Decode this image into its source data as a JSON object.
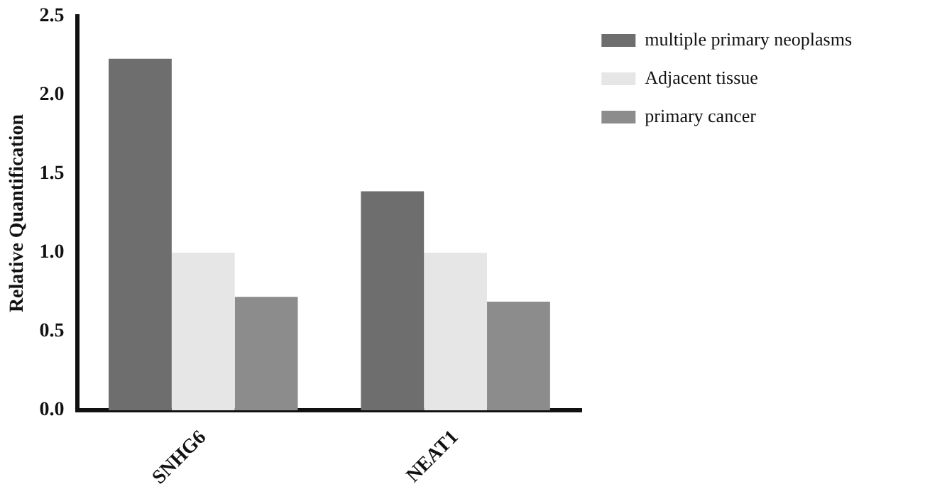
{
  "chart_data": {
    "type": "bar",
    "ylabel": "Relative Quantification",
    "categories": [
      "SNHG6",
      "NEAT1"
    ],
    "series": [
      {
        "name": "multiple primary neoplasms",
        "color": "#6e6e6e",
        "values": [
          2.23,
          1.39
        ]
      },
      {
        "name": "Adjacent tissue",
        "color": "#e6e6e6",
        "values": [
          1.0,
          1.0
        ]
      },
      {
        "name": "primary cancer",
        "color": "#8c8c8c",
        "values": [
          0.72,
          0.69
        ]
      }
    ],
    "ylim": [
      0,
      2.5
    ],
    "yticks": [
      {
        "value": 0,
        "label": "0.0"
      },
      {
        "value": 0.5,
        "label": "0.5"
      },
      {
        "value": 1,
        "label": "1.0"
      },
      {
        "value": 1.5,
        "label": "1.5"
      },
      {
        "value": 2,
        "label": "2.0"
      },
      {
        "value": 2.5,
        "label": "2.5"
      }
    ],
    "grid": false,
    "legend": "top right"
  }
}
